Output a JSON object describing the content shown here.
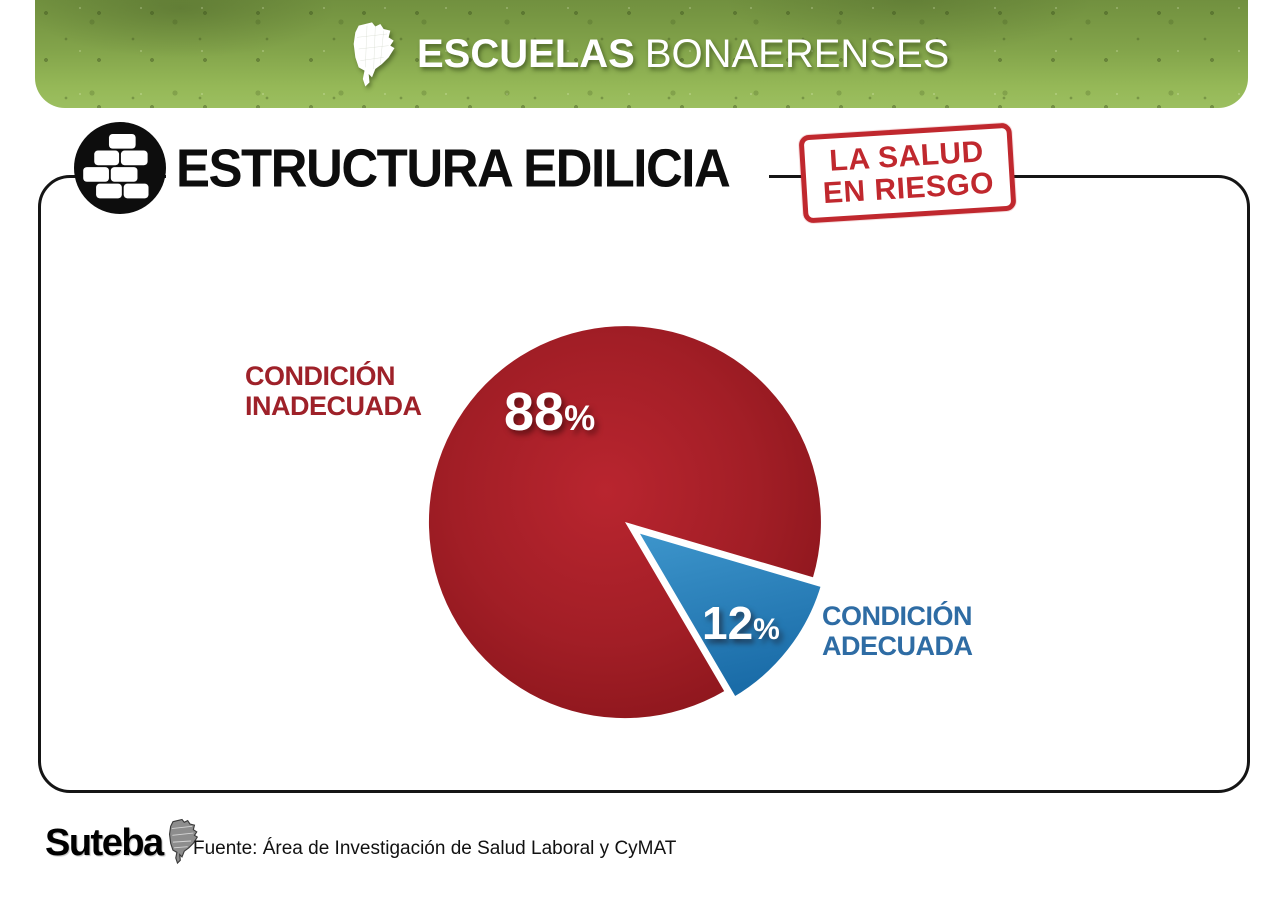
{
  "header": {
    "brand_bold": "ESCUELAS",
    "brand_regular": "BONAERENSES",
    "map_icon": "buenos-aires-province-map"
  },
  "title_bar": {
    "text": "ESTRUCTURA EDILICIA",
    "icon": "brick-wall-icon"
  },
  "stamp": {
    "line1": "LA SALUD",
    "line2": "EN RIESGO"
  },
  "chart_data": {
    "type": "pie",
    "title": "ESTRUCTURA EDILICIA",
    "categories": [
      "CONDICIÓN INADECUADA",
      "CONDICIÓN ADECUADA"
    ],
    "values": [
      88,
      12
    ],
    "unit": "%",
    "legend_position": "side-callouts",
    "slices": [
      {
        "label_line1": "CONDICIÓN",
        "label_line2": "INADECUADA",
        "value": 88,
        "unit": "%",
        "color": "#a01d25",
        "exploded": false
      },
      {
        "label_line1": "CONDICIÓN",
        "label_line2": "ADECUADA",
        "value": 12,
        "unit": "%",
        "color": "#2178b4",
        "exploded": true
      }
    ]
  },
  "footer": {
    "logo_text": "Suteba",
    "logo_icon": "buenos-aires-province-map",
    "source": "Fuente: Área de Investigación de Salud Laboral y CyMAT"
  },
  "colors": {
    "banner_green_dark": "#71903f",
    "banner_green_light": "#9cbf60",
    "stamp_red": "#c0282e",
    "pie_red_light": "#b9252f",
    "pie_red_dark": "#87141a",
    "pie_blue_light": "#3e96cc",
    "pie_blue_dark": "#1a6ca8",
    "label_red": "#9e2129",
    "label_blue": "#2e6ca4",
    "box_border": "#151515"
  }
}
